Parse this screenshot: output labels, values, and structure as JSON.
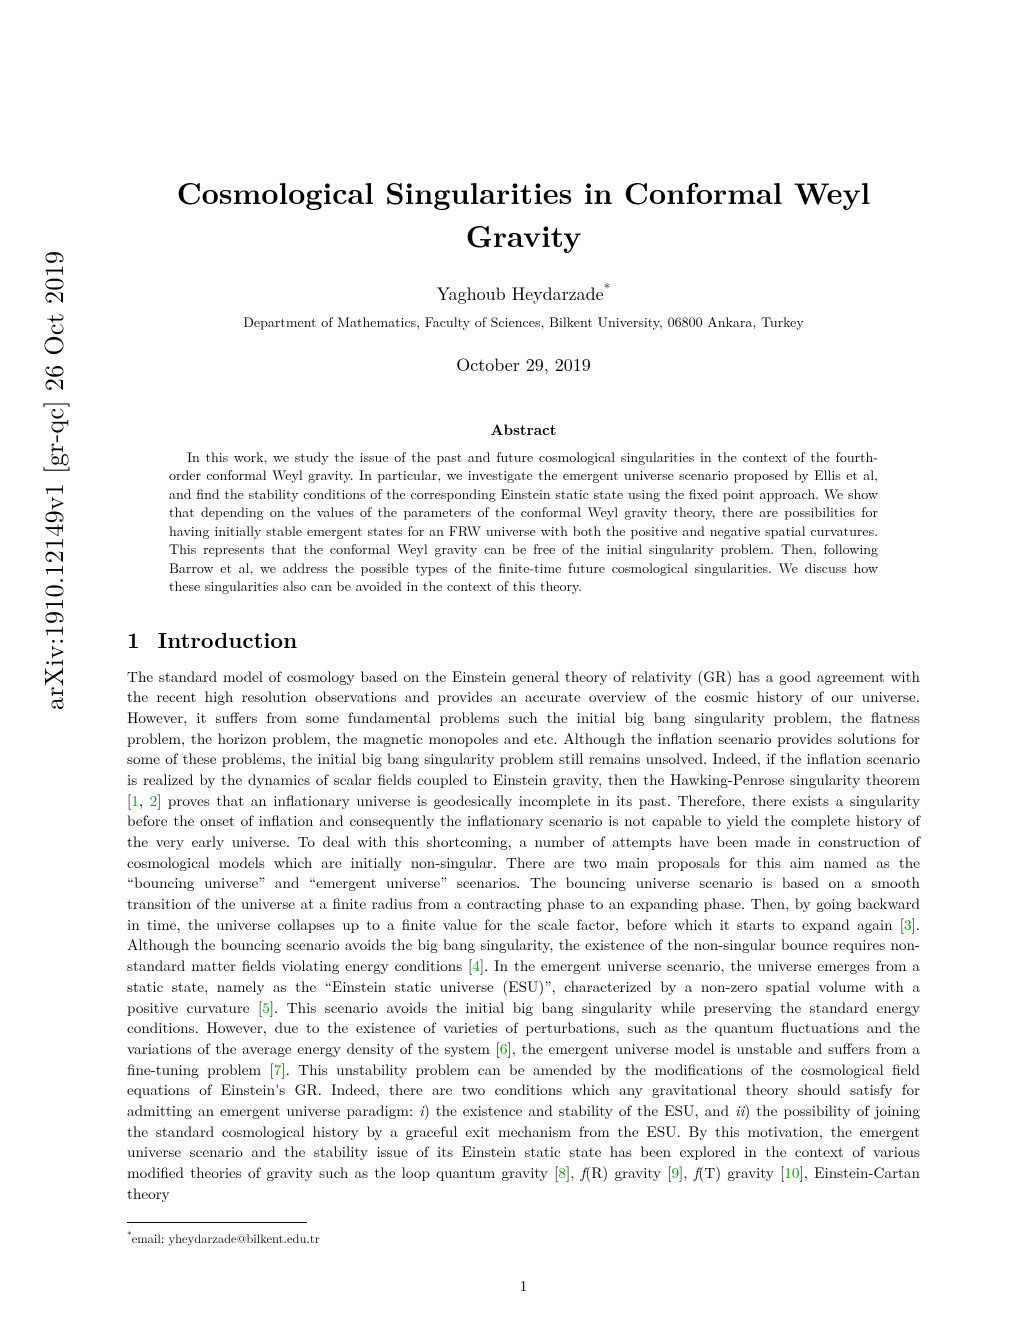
{
  "arxiv_stamp": "arXiv:1910.12149v1  [gr-qc]  26 Oct 2019",
  "title": "Cosmological Singularities in Conformal Weyl Gravity",
  "author": "Yaghoub Heydarzade",
  "author_marker": "*",
  "affiliation": "Department of Mathematics, Faculty of Sciences, Bilkent University, 06800 Ankara, Turkey",
  "date": "October 29, 2019",
  "abstract_heading": "Abstract",
  "abstract_p1_a": "In this work, we study the issue of the past and future cosmological singularities in the context of the fourth-order conformal Weyl gravity. In particular, we investigate the emergent universe scenario proposed by Ellis ",
  "abstract_et_al_1": "et al",
  "abstract_p1_b": ", and find the stability conditions of the corresponding Einstein static state using the fixed point approach. We show that depending on the values of the parameters of the conformal Weyl gravity theory, there are possibilities for having initially stable emergent states for an FRW universe with both the positive and negative spatial curvatures. This represents that the conformal Weyl gravity can be free of the initial singularity problem. Then, following Barrow ",
  "abstract_et_al_2": "et al",
  "abstract_p1_c": ", we address the possible types of the finite-time future cosmological singularities. We discuss how these singularities also can be avoided in the context of this theory.",
  "section_number": "1",
  "section_title": "Introduction",
  "body_a": "The standard model of cosmology based on the Einstein general theory of relativity (GR) has a good agreement with the recent high resolution observations and provides an accurate overview of the cosmic history of our universe. However, it suffers from some fundamental problems such the initial big bang singularity problem, the flatness problem, the horizon problem, the magnetic monopoles and etc. Although the inflation scenario provides solutions for some of these problems, the initial big bang singularity problem still remains unsolved. Indeed, if the inflation scenario is realized by the dynamics of scalar fields coupled to Einstein gravity, then the Hawking-Penrose singularity theorem [",
  "cite_1": "1",
  "body_b": ", ",
  "cite_2": "2",
  "body_c": "] proves that an inflationary universe is geodesically incomplete in its past. Therefore, there exists a singularity before the onset of inflation and consequently the inflationary scenario is not capable to yield the complete history of the very early universe. To deal with this shortcoming, a number of attempts have been made in construction of cosmological models which are initially non-singular. There are two main proposals for this aim named as the “bouncing universe” and “emergent universe” scenarios. The bouncing universe scenario is based on a smooth transition of the universe at a finite radius from a contracting phase to an expanding phase. Then, by going backward in time, the universe collapses up to a finite value for the scale factor, before which it starts to expand again [",
  "cite_3": "3",
  "body_d": "]. Although the bouncing scenario avoids the big bang singularity, the existence of the non-singular bounce requires non-standard matter fields violating energy conditions [",
  "cite_4": "4",
  "body_e": "]. In the emergent universe scenario, the universe emerges from a static state, namely as the “Einstein static universe (ESU)”, characterized by a non-zero spatial volume with a positive curvature [",
  "cite_5": "5",
  "body_f": "]. This scenario avoids the initial big bang singularity while preserving the standard energy conditions. However, due to the existence of varieties of perturbations, such as the quantum fluctuations and the variations of the average energy density of the system [",
  "cite_6": "6",
  "body_g": "], the emergent universe model is unstable and suffers from a fine-tuning problem [",
  "cite_7": "7",
  "body_h": "]. This unstability problem can be amended by the modifications of the cosmological field equations of Einstein's GR. Indeed, there are two conditions which any gravitational theory should satisfy for admitting an emergent universe paradigm: ",
  "body_i_label": "i",
  "body_i": ") the existence and stability of the ESU, and ",
  "body_ii_label": "ii",
  "body_j": ") the possibility of joining the standard cosmological history by a graceful exit mechanism from the ESU. By this motivation, the emergent universe scenario and the stability issue of its Einstein static state has been explored in the context of various modified theories of gravity such as the loop quantum gravity [",
  "cite_8": "8",
  "body_k": "], ",
  "body_fR": "f",
  "body_fR_arg": "(R)",
  "body_l": " gravity [",
  "cite_9": "9",
  "body_m": "], ",
  "body_fT": "f",
  "body_fT_arg": "(T)",
  "body_n": " gravity [",
  "cite_10": "10",
  "body_o": "], Einstein-Cartan theory",
  "footnote_marker": "*",
  "footnote_text": "email: yheydarzade@bilkent.edu.tr",
  "page_number": "1",
  "colors": {
    "citation": "#00a000",
    "text": "#000000",
    "background": "#ffffff"
  }
}
